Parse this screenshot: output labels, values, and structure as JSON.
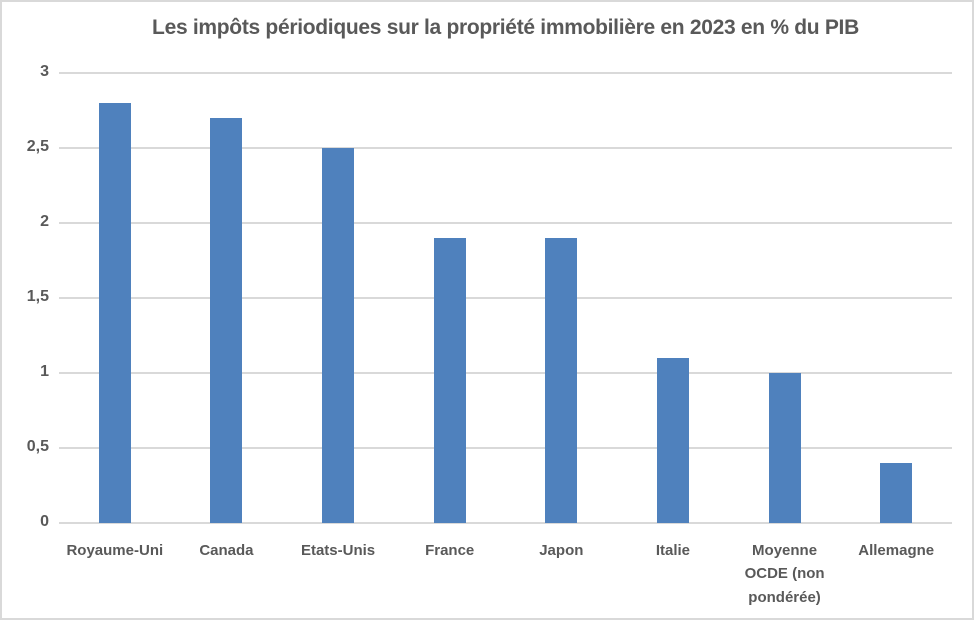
{
  "chart_data": {
    "type": "bar",
    "title": "Les impôts périodiques sur la propriété immobilière en 2023 en % du PIB",
    "categories": [
      "Royaume-Uni",
      "Canada",
      "Etats-Unis",
      "France",
      "Japon",
      "Italie",
      "Moyenne OCDE (non pondérée)",
      "Allemagne"
    ],
    "values": [
      2.8,
      2.7,
      2.5,
      1.9,
      1.9,
      1.1,
      1.0,
      0.4
    ],
    "xlabel": "",
    "ylabel": "",
    "ylim": [
      0,
      3
    ],
    "ytick_step": 0.5,
    "ytick_labels": [
      "0",
      "0,5",
      "1",
      "1,5",
      "2",
      "2,5",
      "3"
    ],
    "decimal_separator": ",",
    "grid": true,
    "legend": false,
    "colors": {
      "bar": "#4f81bd",
      "gridline": "#d9d9d9",
      "text": "#595959",
      "background": "#ffffff",
      "frame_border": "#d9d9d9"
    }
  }
}
